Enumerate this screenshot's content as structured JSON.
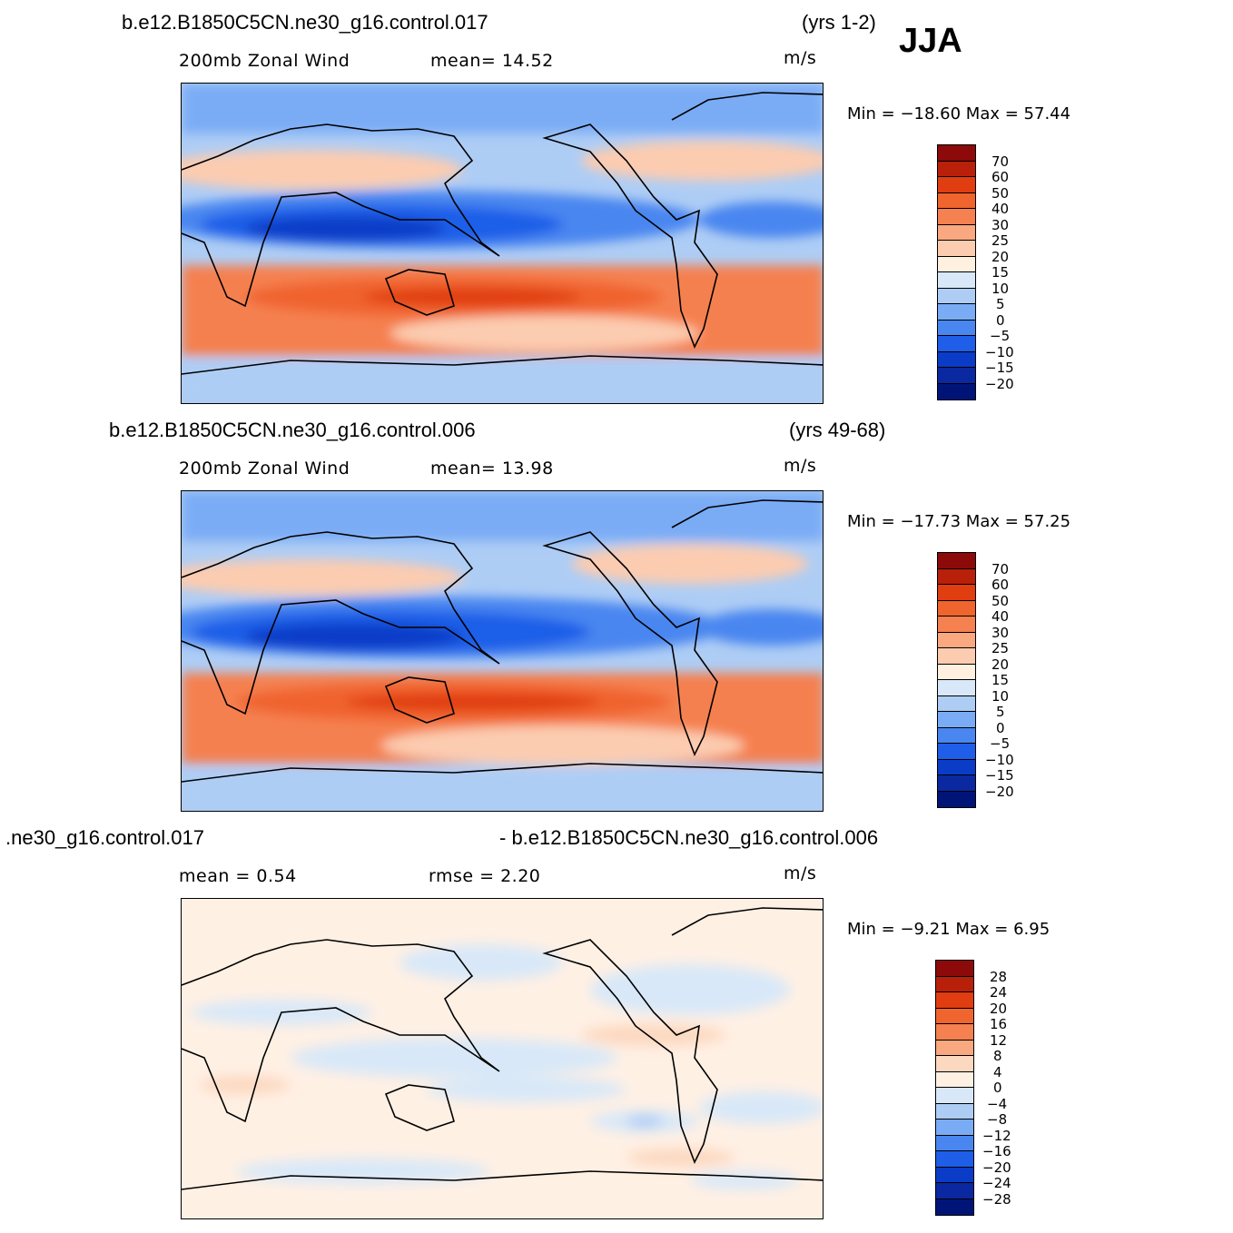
{
  "season": "JJA",
  "panels": [
    {
      "case": "b.e12.B1850C5CN.ne30_g16.control.017",
      "years": "(yrs 1-2)",
      "variable": "200mb  Zonal  Wind",
      "stat": "mean=   14.52",
      "units": "m/s",
      "minmax": "Min  =  −18.60  Max  =    57.44",
      "levels": [
        "70",
        "60",
        "50",
        "40",
        "30",
        "25",
        "20",
        "15",
        "10",
        "5",
        "0",
        "−5",
        "−10",
        "−15",
        "−20"
      ]
    },
    {
      "case": "b.e12.B1850C5CN.ne30_g16.control.006",
      "years": "(yrs 49-68)",
      "variable": "200mb  Zonal  Wind",
      "stat": "mean=   13.98",
      "units": "m/s",
      "minmax": "Min  =  −17.73  Max  =    57.25",
      "levels": [
        "70",
        "60",
        "50",
        "40",
        "30",
        "25",
        "20",
        "15",
        "10",
        "5",
        "0",
        "−5",
        "−10",
        "−15",
        "−20"
      ]
    },
    {
      "case_left": ".ne30_g16.control.017",
      "case_right": "- b.e12.B1850C5CN.ne30_g16.control.006",
      "mean": "mean  =     0.54",
      "rmse": "rmse  =     2.20",
      "units": "m/s",
      "minmax": "Min  =    −9.21  Max  =      6.95",
      "levels": [
        "28",
        "24",
        "20",
        "16",
        "12",
        "8",
        "4",
        "0",
        "−4",
        "−8",
        "−12",
        "−16",
        "−20",
        "−24",
        "−28"
      ]
    }
  ],
  "colors": {
    "cb_main": [
      "#8c0a0a",
      "#b8200a",
      "#e03d10",
      "#f0642e",
      "#f58050",
      "#f9a880",
      "#fcccb0",
      "#fff0e0",
      "#d8e8f8",
      "#aecdf5",
      "#7aacf5",
      "#4a86f0",
      "#1e5ee8",
      "#0a3cc8",
      "#0a28a0",
      "#001478"
    ],
    "cb_diff": [
      "#8c0a0a",
      "#b8200a",
      "#e03d10",
      "#f0642e",
      "#f58050",
      "#f9a880",
      "#fcd8c0",
      "#fff0e4",
      "#d8e8f8",
      "#aecdf5",
      "#7aacf5",
      "#4a86f0",
      "#1e5ee8",
      "#0a3cc8",
      "#0a28a0",
      "#001478"
    ]
  }
}
